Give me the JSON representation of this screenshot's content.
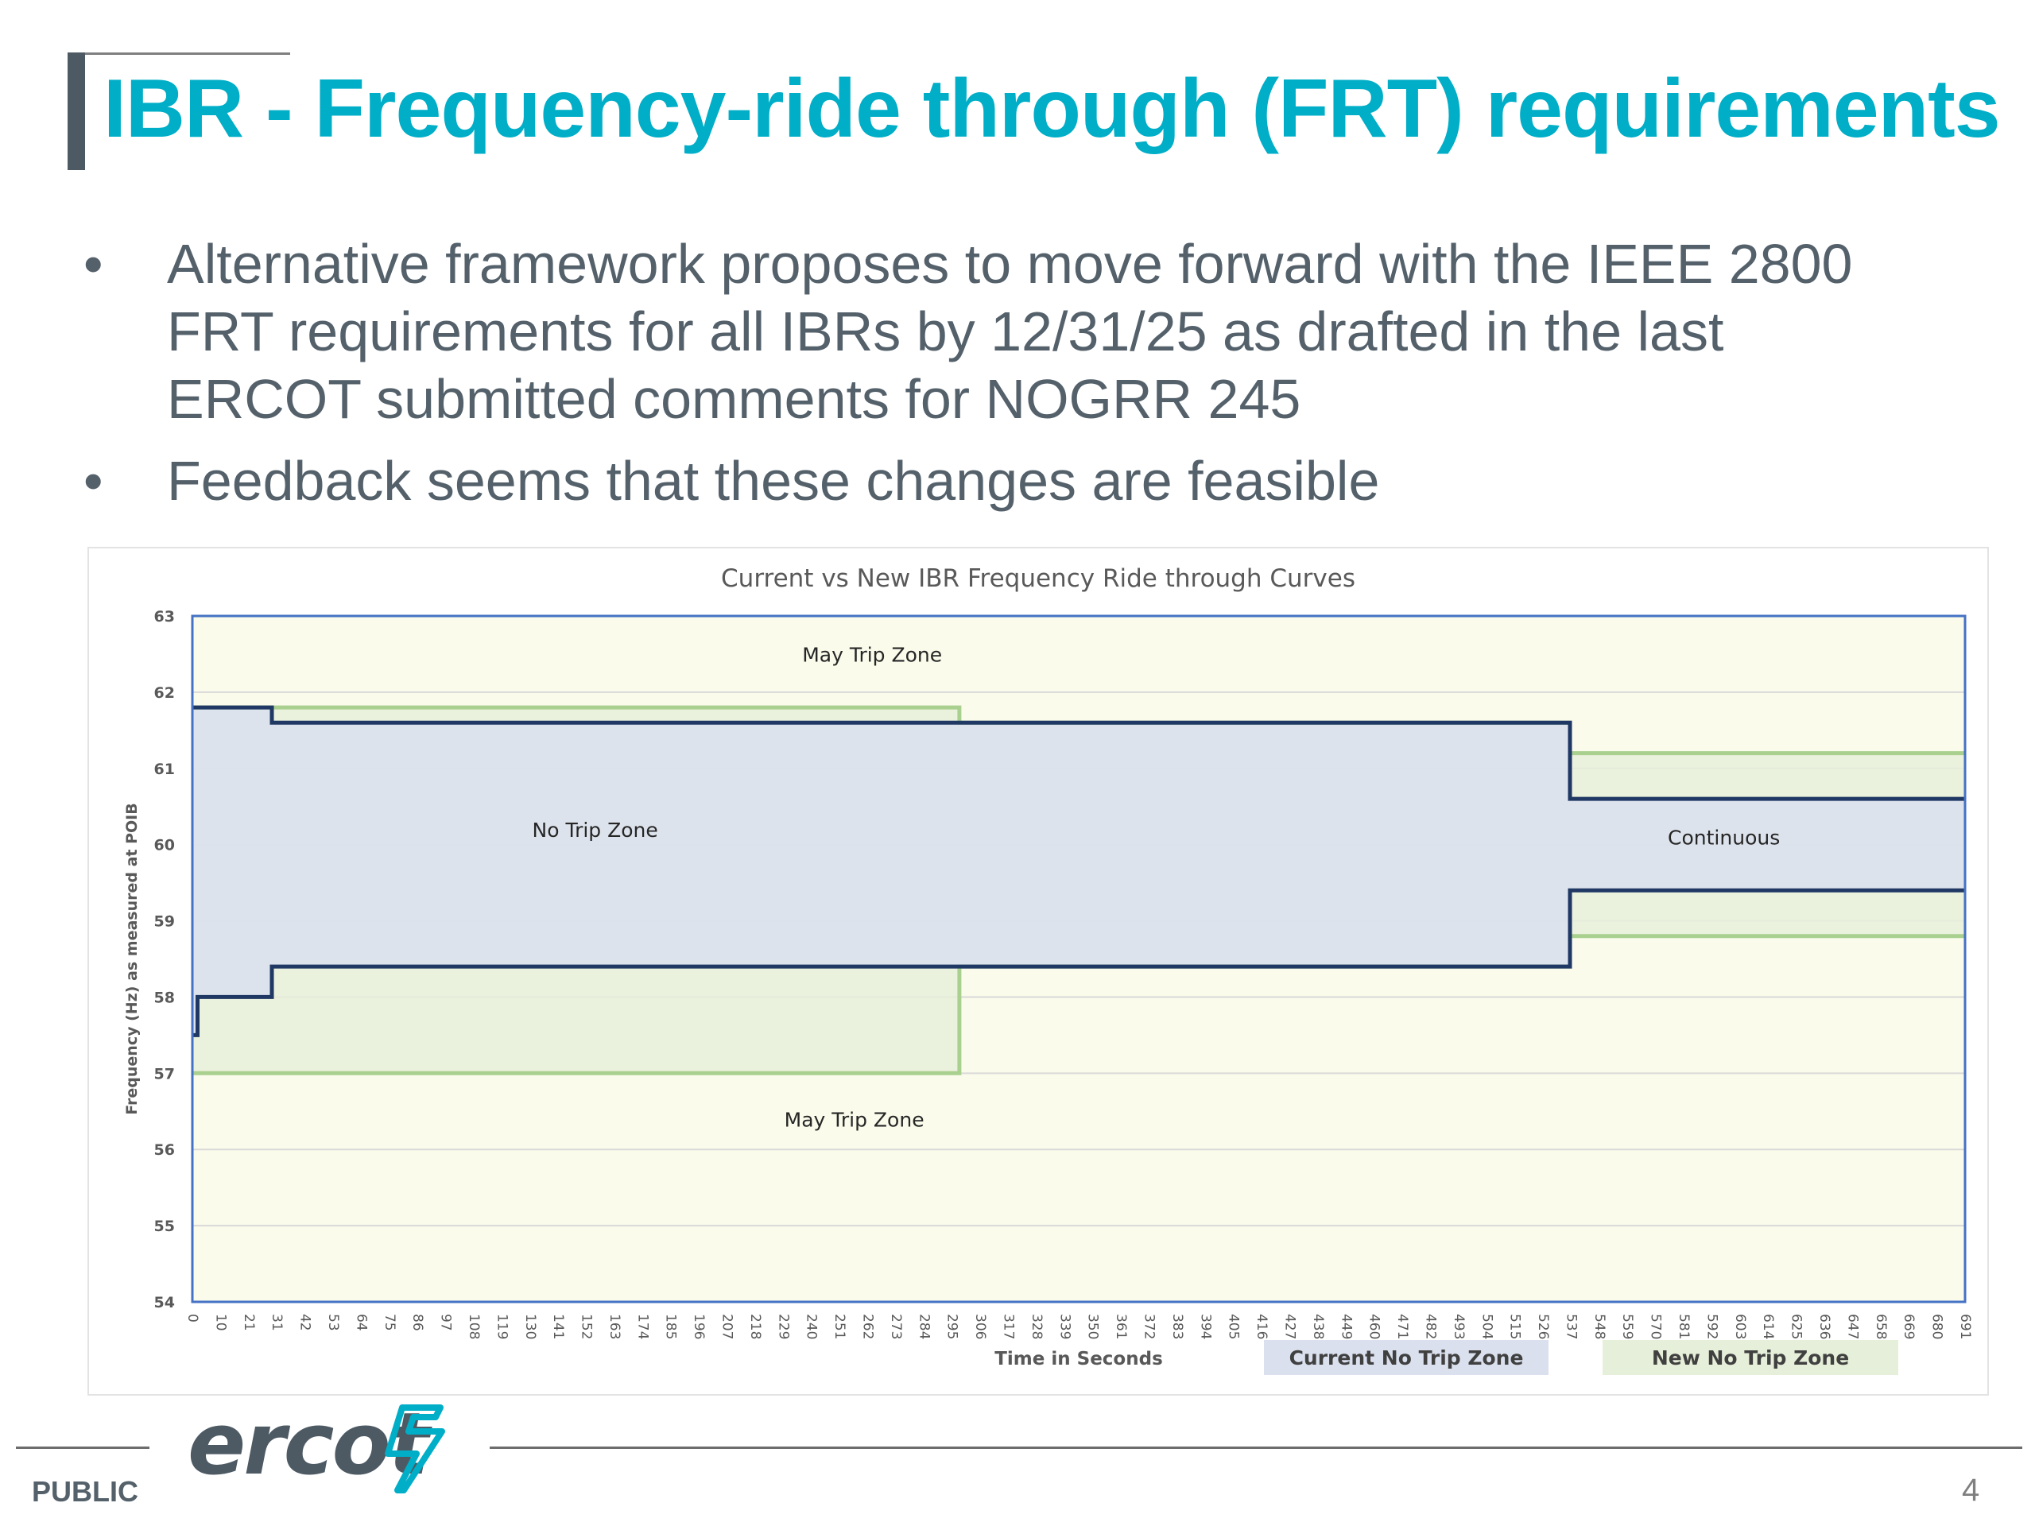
{
  "slide": {
    "title": "IBR - Frequency-ride through (FRT) requirements",
    "bullets": [
      "Alternative framework proposes to move forward with the IEEE 2800 FRT requirements for all IBRs by 12/31/25 as drafted in the last ERCOT submitted comments for NOGRR 245",
      "Feedback seems that these changes are feasible"
    ],
    "bullet_glyph": "•"
  },
  "footer": {
    "classification": "PUBLIC",
    "logo_text": "ercot",
    "page_number": "4"
  },
  "colors": {
    "title": "#00aec7",
    "body_text": "#54616b",
    "current_zone_fill": "#dae0ee",
    "new_zone_fill": "#e6efd9",
    "may_trip_fill": "#fafbeb",
    "current_line": "#1f3864",
    "new_line": "#a9d08e",
    "plot_border": "#4472c4"
  },
  "chart_data": {
    "type": "area",
    "title": "Current vs New IBR Frequency Ride through Curves",
    "xlabel": "Time in Seconds",
    "ylabel": "Frequency (Hz) as measured at POIB",
    "ylim": [
      54,
      63
    ],
    "y_ticks": [
      54,
      55,
      56,
      57,
      58,
      59,
      60,
      61,
      62,
      63
    ],
    "x_tick_labels": [
      "0",
      "10",
      "21",
      "31",
      "42",
      "53",
      "64",
      "75",
      "86",
      "97",
      "108",
      "119",
      "130",
      "141",
      "152",
      "163",
      "174",
      "185",
      "196",
      "207",
      "218",
      "229",
      "240",
      "251",
      "262",
      "273",
      "284",
      "295",
      "306",
      "317",
      "328",
      "339",
      "350",
      "361",
      "372",
      "383",
      "394",
      "405",
      "416",
      "427",
      "438",
      "449",
      "460",
      "471",
      "482",
      "493",
      "504",
      "515",
      "526",
      "537",
      "548",
      "559",
      "570",
      "581",
      "592",
      "603",
      "614",
      "625",
      "636",
      "647",
      "658",
      "669",
      "680",
      "691"
    ],
    "grid": true,
    "legend_position": "bottom-right",
    "series": [
      {
        "name": "Current No Trip Zone",
        "upper": [
          [
            0,
            61.8
          ],
          [
            31,
            61.8
          ],
          [
            31,
            61.6
          ],
          [
            295,
            61.6
          ],
          [
            295,
            61.6
          ],
          [
            537,
            61.6
          ],
          [
            537,
            60.6
          ],
          [
            691,
            60.6
          ]
        ],
        "lower": [
          [
            0,
            57.5
          ],
          [
            2,
            57.5
          ],
          [
            2,
            58.0
          ],
          [
            31,
            58.0
          ],
          [
            31,
            58.4
          ],
          [
            295,
            58.4
          ],
          [
            537,
            58.4
          ],
          [
            537,
            59.4
          ],
          [
            691,
            59.4
          ]
        ]
      },
      {
        "name": "New No Trip Zone",
        "upper": [
          [
            0,
            61.8
          ],
          [
            299,
            61.8
          ],
          [
            299,
            61.6
          ],
          [
            537,
            61.6
          ],
          [
            537,
            61.2
          ],
          [
            691,
            61.2
          ]
        ],
        "lower": [
          [
            0,
            57.0
          ],
          [
            299,
            57.0
          ],
          [
            299,
            58.4
          ],
          [
            537,
            58.4
          ],
          [
            537,
            58.8
          ],
          [
            691,
            58.8
          ]
        ]
      }
    ],
    "annotations": [
      {
        "text": "May Trip Zone",
        "x": 265,
        "y": 62.4
      },
      {
        "text": "No Trip Zone",
        "x": 157,
        "y": 60.1
      },
      {
        "text": "Continuous",
        "x": 597,
        "y": 60.0
      },
      {
        "text": "May Trip Zone",
        "x": 258,
        "y": 56.3
      }
    ]
  }
}
